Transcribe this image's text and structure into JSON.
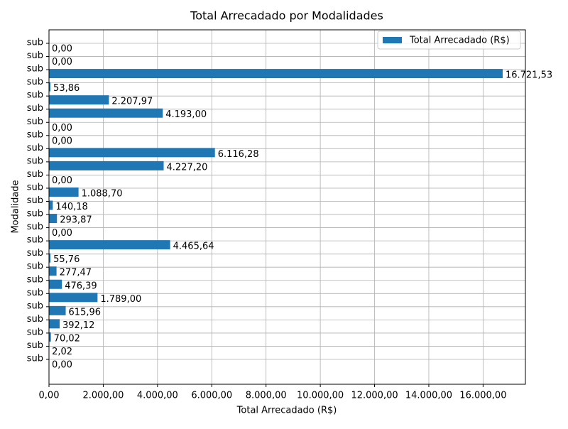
{
  "chart_data": {
    "type": "barh",
    "title": "Total Arrecadado por Modalidades",
    "xlabel": "Total Arrecadado (R$)",
    "ylabel": "Modalidade",
    "categories": [
      "sub",
      "sub",
      "sub",
      "sub",
      "sub",
      "sub",
      "sub",
      "sub",
      "sub",
      "sub",
      "sub",
      "sub",
      "sub",
      "sub",
      "sub",
      "sub",
      "sub",
      "sub",
      "sub",
      "sub",
      "sub",
      "sub",
      "sub",
      "sub",
      "sub"
    ],
    "series": [
      {
        "name": "Total Arrecadado (R$)",
        "color": "#1f77b4",
        "values": [
          0,
          0,
          16721.53,
          53.86,
          2207.97,
          4193,
          0,
          0,
          6116.28,
          4227.2,
          0,
          1088.7,
          140.18,
          293.87,
          0,
          4465.64,
          55.76,
          277.47,
          476.39,
          1789,
          615.96,
          392.12,
          70.02,
          2.02,
          0
        ],
        "value_labels": [
          "0,00",
          "0,00",
          "16.721,53",
          "53,86",
          "2.207,97",
          "4.193,00",
          "0,00",
          "0,00",
          "6.116,28",
          "4.227,20",
          "0,00",
          "1.088,70",
          "140,18",
          "293,87",
          "0,00",
          "4.465,64",
          "55,76",
          "277,47",
          "476,39",
          "1.789,00",
          "615,96",
          "392,12",
          "70,02",
          "2,02",
          "0,00"
        ]
      }
    ],
    "xlim": [
      0,
      17560
    ],
    "xticks": [
      {
        "value": 0,
        "label": "0,00"
      },
      {
        "value": 2000,
        "label": "2.000,00"
      },
      {
        "value": 4000,
        "label": "4.000,00"
      },
      {
        "value": 6000,
        "label": "6.000,00"
      },
      {
        "value": 8000,
        "label": "8.000,00"
      },
      {
        "value": 10000,
        "label": "10.000,00"
      },
      {
        "value": 12000,
        "label": "12.000,00"
      },
      {
        "value": 14000,
        "label": "14.000,00"
      },
      {
        "value": 16000,
        "label": "16.000,00"
      }
    ],
    "grid": true,
    "legend": "upper right"
  }
}
